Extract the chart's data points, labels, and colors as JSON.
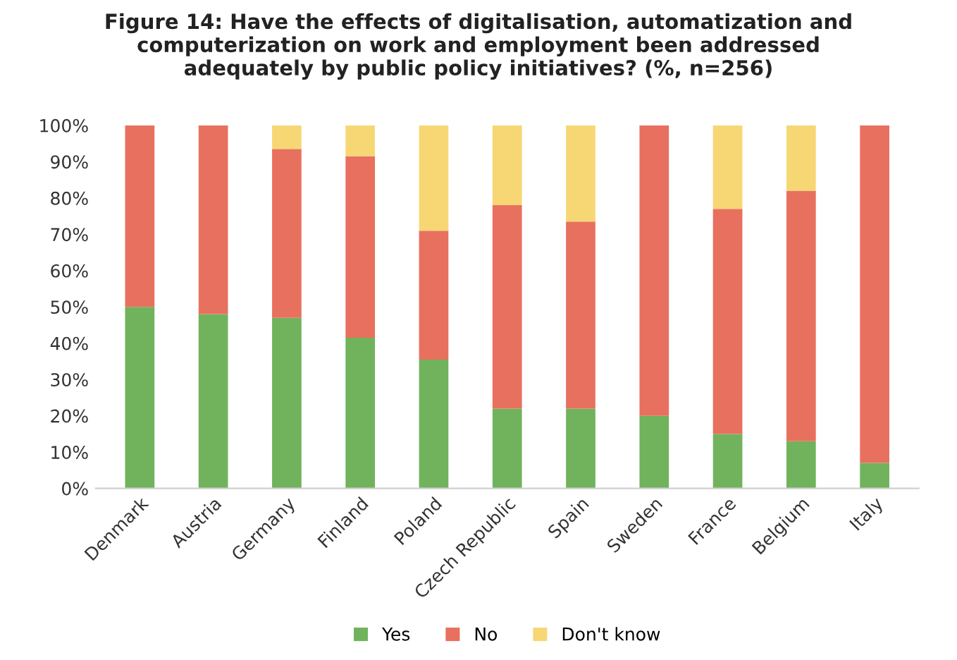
{
  "chart_data": {
    "type": "bar",
    "stacked": true,
    "title": "Figure 14: Have the effects of digitalisation, automatization and\ncomputerization on work and employment been addressed\nadequately by public policy initiatives? (%, n=256)",
    "categories": [
      "Denmark",
      "Austria",
      "Germany",
      "Finland",
      "Poland",
      "Czech Republic",
      "Spain",
      "Sweden",
      "France",
      "Belgium",
      "Italy"
    ],
    "series": [
      {
        "name": "Yes",
        "color": "#70b35c",
        "values": [
          50,
          48,
          47,
          41.5,
          35.5,
          22,
          22,
          20,
          15,
          13,
          7
        ]
      },
      {
        "name": "No",
        "color": "#e8705f",
        "values": [
          50,
          52,
          46.5,
          50,
          35.5,
          56,
          51.5,
          80,
          62,
          69,
          93
        ]
      },
      {
        "name": "Don't know",
        "color": "#f7d774",
        "values": [
          0,
          0,
          6.5,
          8.5,
          29,
          22,
          26.5,
          0,
          23,
          18,
          0
        ]
      }
    ],
    "ylim": [
      0,
      100
    ],
    "yticks": [
      {
        "value": 0,
        "label": "0%"
      },
      {
        "value": 10,
        "label": "10%"
      },
      {
        "value": 20,
        "label": "20%"
      },
      {
        "value": 30,
        "label": "30%"
      },
      {
        "value": 40,
        "label": "40%"
      },
      {
        "value": 50,
        "label": "50%"
      },
      {
        "value": 60,
        "label": "60%"
      },
      {
        "value": 70,
        "label": "70%"
      },
      {
        "value": 80,
        "label": "80%"
      },
      {
        "value": 90,
        "label": "90%"
      },
      {
        "value": 100,
        "label": "100%"
      }
    ],
    "grid": false,
    "legend": "bottom"
  }
}
